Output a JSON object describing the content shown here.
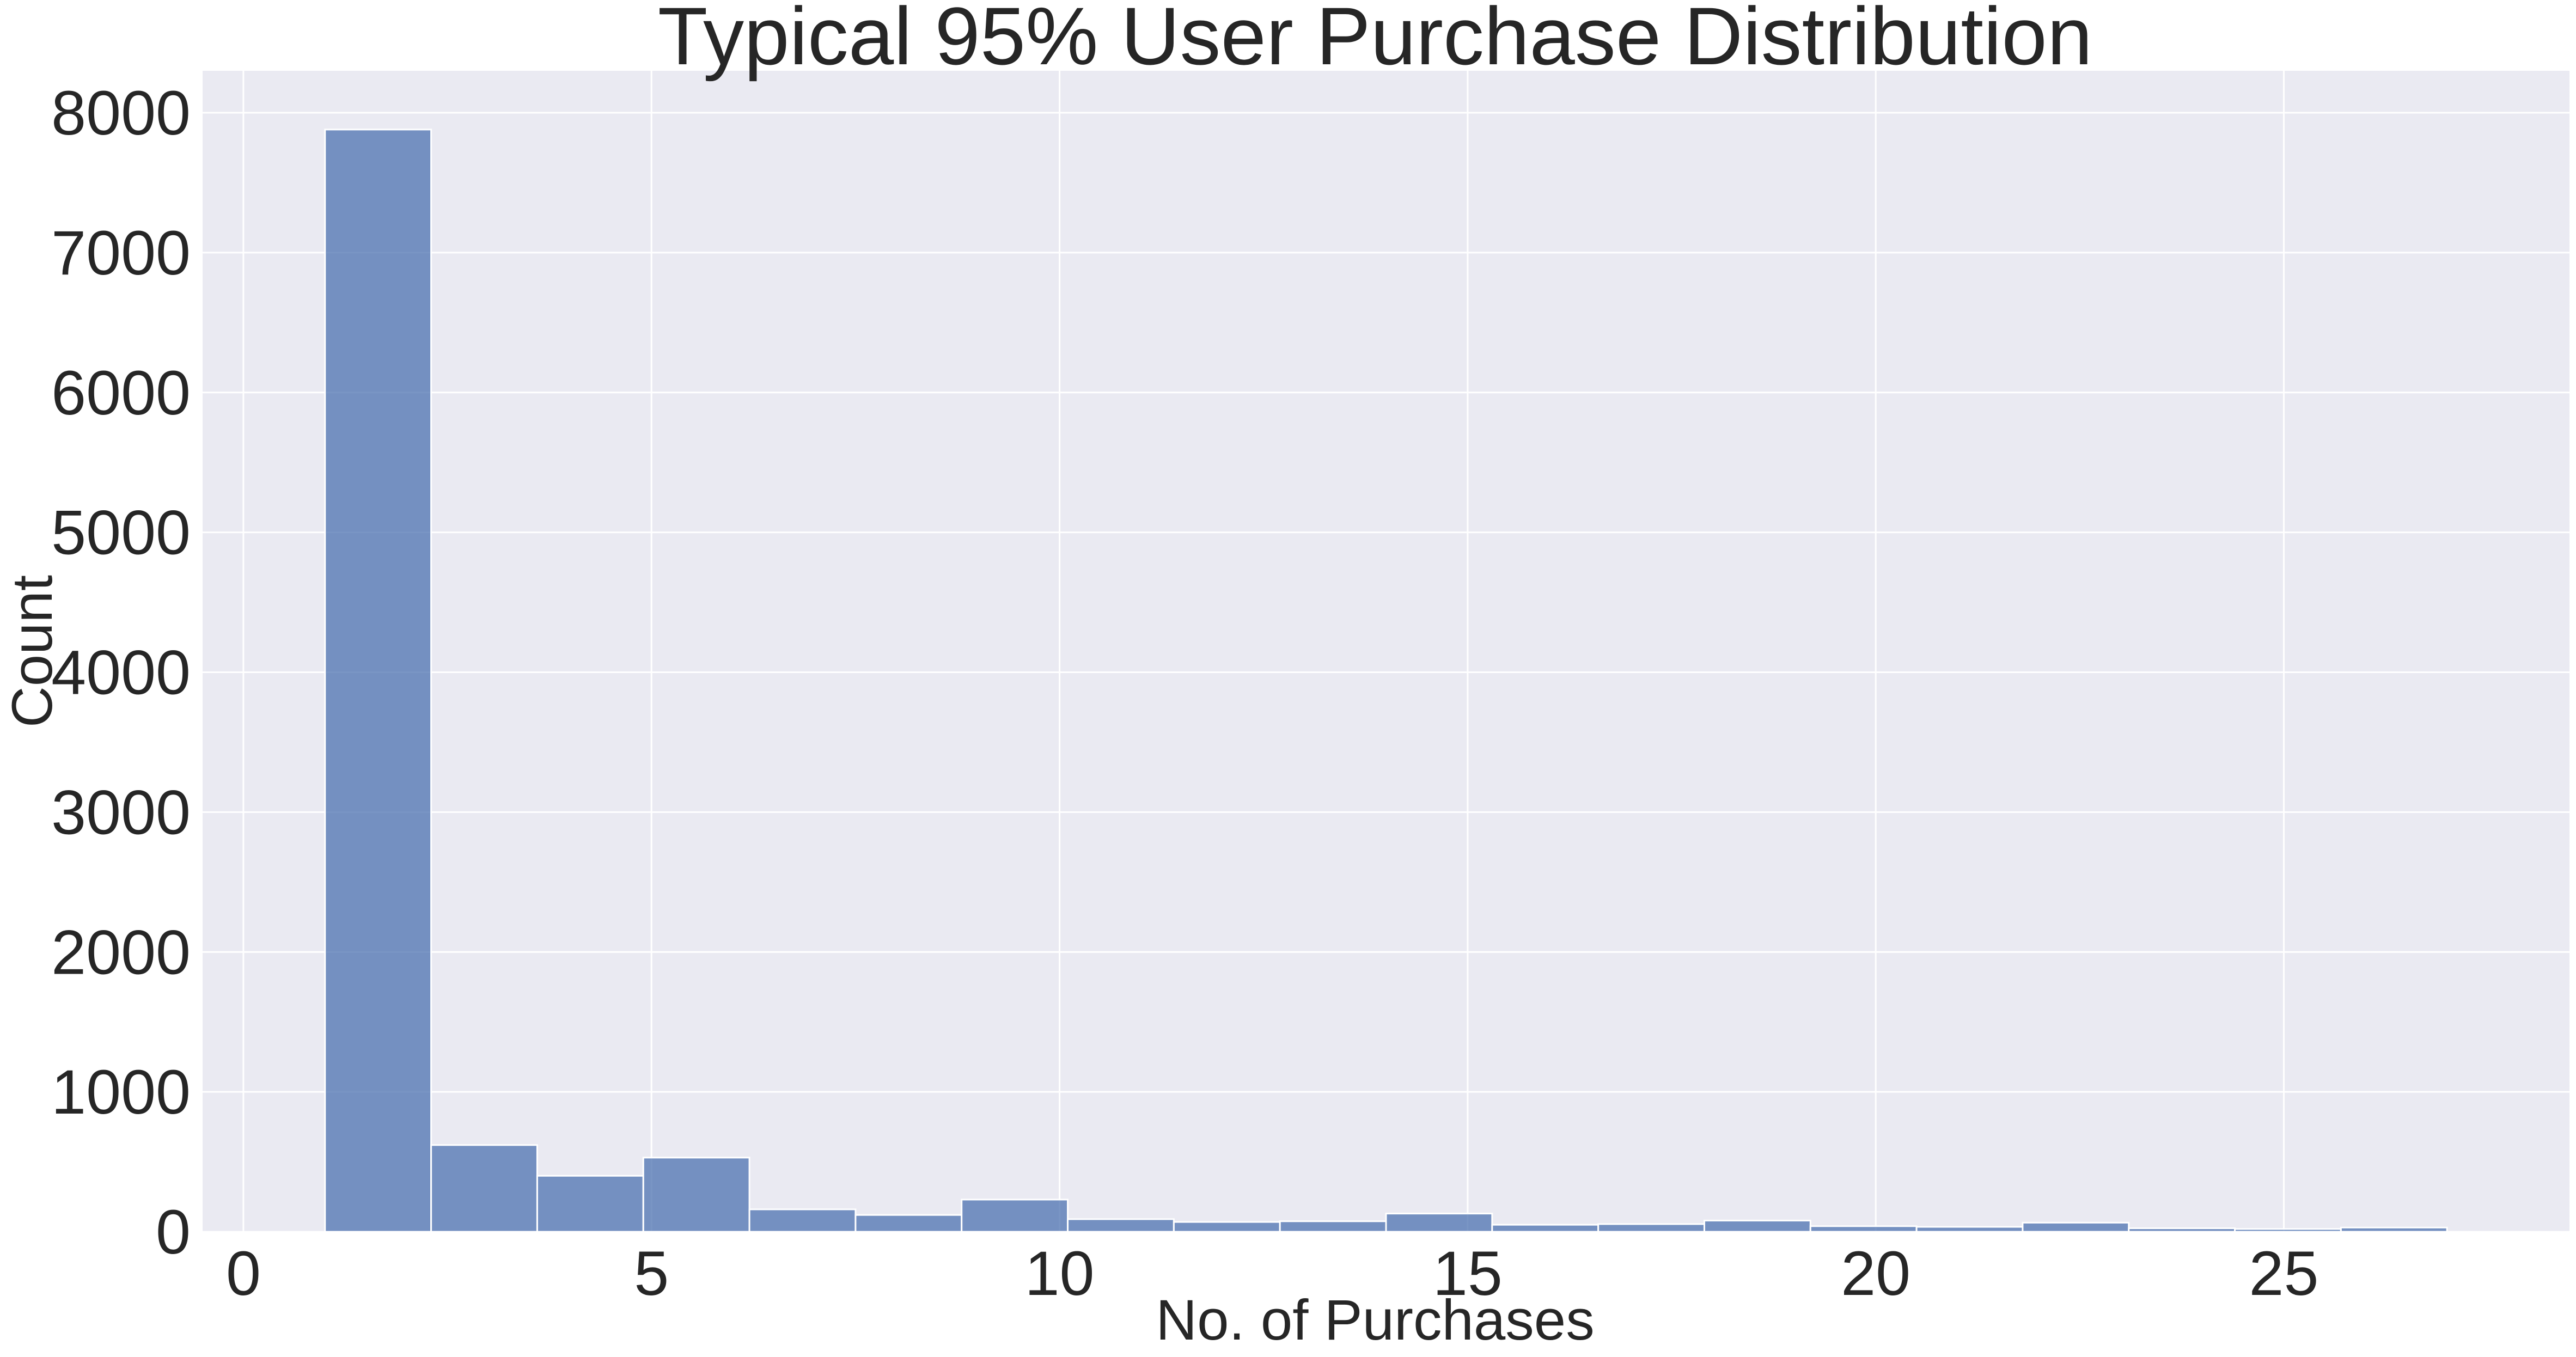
{
  "chart_data": {
    "type": "bar",
    "title": "Typical 95% User Purchase Distribution",
    "xlabel": "No. of Purchases",
    "ylabel": "Count",
    "xlim": [
      -0.5,
      28.5
    ],
    "ylim": [
      0,
      8300
    ],
    "xticks": [
      0,
      5,
      10,
      15,
      20,
      25
    ],
    "yticks": [
      0,
      1000,
      2000,
      3000,
      4000,
      5000,
      6000,
      7000,
      8000
    ],
    "bin_edges": [
      1.0,
      2.3,
      3.6,
      4.9,
      6.2,
      7.5,
      8.8,
      10.1,
      11.4,
      12.7,
      14.0,
      15.3,
      16.6,
      17.9,
      19.2,
      20.5,
      21.8,
      23.1,
      24.4,
      25.7,
      27.0
    ],
    "values": [
      7880,
      620,
      400,
      530,
      160,
      120,
      230,
      90,
      70,
      75,
      130,
      50,
      55,
      80,
      40,
      35,
      65,
      25,
      20,
      30
    ],
    "bar_color": "#4c72b0",
    "bar_opacity": 0.75,
    "background_color": "#eaeaf2",
    "grid": true,
    "grid_color": "#ffffff"
  }
}
